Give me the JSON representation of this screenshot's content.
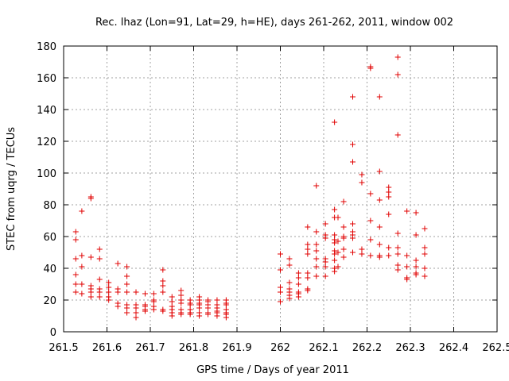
{
  "chart_data": {
    "type": "scatter",
    "title": "Rec. lhaz (Lon=91, Lat=29, h=HE), days 261-262, 2011, window 002",
    "xlabel": "GPS time / Days of year 2011",
    "ylabel": "STEC from uqrg / TECUs",
    "xlim": [
      261.5,
      262.5
    ],
    "ylim": [
      0,
      180
    ],
    "xticks": [
      "261.5",
      "261.6",
      "261.7",
      "261.8",
      "261.9",
      "262",
      "262.1",
      "262.2",
      "262.3",
      "262.4",
      "262.5"
    ],
    "yticks": [
      "0",
      "20",
      "40",
      "60",
      "80",
      "100",
      "120",
      "140",
      "160",
      "180"
    ],
    "grid": true,
    "marker": "plus",
    "color": "#e00000",
    "points": [
      [
        261.528,
        63
      ],
      [
        261.528,
        58
      ],
      [
        261.528,
        46
      ],
      [
        261.528,
        36
      ],
      [
        261.528,
        30
      ],
      [
        261.528,
        25
      ],
      [
        261.542,
        76
      ],
      [
        261.542,
        48
      ],
      [
        261.542,
        41
      ],
      [
        261.542,
        30
      ],
      [
        261.542,
        24
      ],
      [
        261.563,
        85
      ],
      [
        261.563,
        84
      ],
      [
        261.563,
        47
      ],
      [
        261.563,
        29
      ],
      [
        261.563,
        27
      ],
      [
        261.563,
        25
      ],
      [
        261.563,
        22
      ],
      [
        261.583,
        52
      ],
      [
        261.583,
        46
      ],
      [
        261.583,
        33
      ],
      [
        261.583,
        27
      ],
      [
        261.583,
        25
      ],
      [
        261.583,
        22
      ],
      [
        261.604,
        31
      ],
      [
        261.604,
        28
      ],
      [
        261.604,
        25
      ],
      [
        261.604,
        22
      ],
      [
        261.604,
        20
      ],
      [
        261.625,
        43
      ],
      [
        261.625,
        27
      ],
      [
        261.625,
        25
      ],
      [
        261.625,
        18
      ],
      [
        261.625,
        16
      ],
      [
        261.646,
        41
      ],
      [
        261.646,
        35
      ],
      [
        261.646,
        30
      ],
      [
        261.646,
        25
      ],
      [
        261.646,
        17
      ],
      [
        261.646,
        15
      ],
      [
        261.646,
        12
      ],
      [
        261.667,
        25
      ],
      [
        261.667,
        17
      ],
      [
        261.667,
        15
      ],
      [
        261.667,
        12
      ],
      [
        261.667,
        9
      ],
      [
        261.688,
        24
      ],
      [
        261.688,
        17
      ],
      [
        261.688,
        16
      ],
      [
        261.688,
        14
      ],
      [
        261.688,
        13
      ],
      [
        261.708,
        24
      ],
      [
        261.708,
        20
      ],
      [
        261.708,
        19
      ],
      [
        261.708,
        16
      ],
      [
        261.708,
        14
      ],
      [
        261.729,
        39
      ],
      [
        261.729,
        32
      ],
      [
        261.729,
        29
      ],
      [
        261.729,
        25
      ],
      [
        261.729,
        14
      ],
      [
        261.729,
        13
      ],
      [
        261.75,
        22
      ],
      [
        261.75,
        19
      ],
      [
        261.75,
        16
      ],
      [
        261.75,
        14
      ],
      [
        261.75,
        12
      ],
      [
        261.75,
        10
      ],
      [
        261.771,
        26
      ],
      [
        261.771,
        23
      ],
      [
        261.771,
        20
      ],
      [
        261.771,
        18
      ],
      [
        261.771,
        14
      ],
      [
        261.771,
        12
      ],
      [
        261.771,
        11
      ],
      [
        261.792,
        20
      ],
      [
        261.792,
        18
      ],
      [
        261.792,
        17
      ],
      [
        261.792,
        14
      ],
      [
        261.792,
        12
      ],
      [
        261.792,
        11
      ],
      [
        261.813,
        22
      ],
      [
        261.813,
        20
      ],
      [
        261.813,
        18
      ],
      [
        261.813,
        17
      ],
      [
        261.813,
        15
      ],
      [
        261.813,
        12
      ],
      [
        261.813,
        10
      ],
      [
        261.833,
        20
      ],
      [
        261.833,
        19
      ],
      [
        261.833,
        17
      ],
      [
        261.833,
        15
      ],
      [
        261.833,
        12
      ],
      [
        261.833,
        11
      ],
      [
        261.854,
        20
      ],
      [
        261.854,
        17
      ],
      [
        261.854,
        15
      ],
      [
        261.854,
        13
      ],
      [
        261.854,
        12
      ],
      [
        261.854,
        10
      ],
      [
        261.875,
        20
      ],
      [
        261.875,
        18
      ],
      [
        261.875,
        17
      ],
      [
        261.875,
        14
      ],
      [
        261.875,
        12
      ],
      [
        261.875,
        11
      ],
      [
        261.875,
        9
      ],
      [
        262.0,
        49
      ],
      [
        262.0,
        39
      ],
      [
        262.0,
        28
      ],
      [
        262.0,
        25
      ],
      [
        262.0,
        19
      ],
      [
        262.021,
        46
      ],
      [
        262.021,
        42
      ],
      [
        262.021,
        31
      ],
      [
        262.021,
        27
      ],
      [
        262.021,
        25
      ],
      [
        262.021,
        23
      ],
      [
        262.021,
        21
      ],
      [
        262.042,
        37
      ],
      [
        262.042,
        34
      ],
      [
        262.042,
        30
      ],
      [
        262.042,
        25
      ],
      [
        262.042,
        24
      ],
      [
        262.042,
        22
      ],
      [
        262.063,
        66
      ],
      [
        262.063,
        55
      ],
      [
        262.063,
        52
      ],
      [
        262.063,
        49
      ],
      [
        262.063,
        37
      ],
      [
        262.063,
        34
      ],
      [
        262.063,
        27
      ],
      [
        262.063,
        26
      ],
      [
        262.083,
        92
      ],
      [
        262.083,
        63
      ],
      [
        262.083,
        55
      ],
      [
        262.083,
        51
      ],
      [
        262.083,
        46
      ],
      [
        262.083,
        41
      ],
      [
        262.083,
        35
      ],
      [
        262.104,
        68
      ],
      [
        262.104,
        61
      ],
      [
        262.104,
        59
      ],
      [
        262.104,
        46
      ],
      [
        262.104,
        44
      ],
      [
        262.104,
        41
      ],
      [
        262.104,
        35
      ],
      [
        262.125,
        132
      ],
      [
        262.125,
        77
      ],
      [
        262.125,
        72
      ],
      [
        262.125,
        61
      ],
      [
        262.125,
        58
      ],
      [
        262.125,
        56
      ],
      [
        262.125,
        51
      ],
      [
        262.125,
        49
      ],
      [
        262.125,
        45
      ],
      [
        262.125,
        40
      ],
      [
        262.125,
        38
      ],
      [
        262.133,
        72
      ],
      [
        262.133,
        57
      ],
      [
        262.133,
        50
      ],
      [
        262.133,
        41
      ],
      [
        262.146,
        82
      ],
      [
        262.146,
        66
      ],
      [
        262.146,
        60
      ],
      [
        262.146,
        59
      ],
      [
        262.146,
        52
      ],
      [
        262.146,
        47
      ],
      [
        262.167,
        148
      ],
      [
        262.167,
        118
      ],
      [
        262.167,
        107
      ],
      [
        262.167,
        68
      ],
      [
        262.167,
        63
      ],
      [
        262.167,
        61
      ],
      [
        262.167,
        59
      ],
      [
        262.167,
        50
      ],
      [
        262.188,
        99
      ],
      [
        262.188,
        94
      ],
      [
        262.188,
        52
      ],
      [
        262.188,
        49
      ],
      [
        262.208,
        167
      ],
      [
        262.208,
        166
      ],
      [
        262.208,
        87
      ],
      [
        262.208,
        70
      ],
      [
        262.208,
        58
      ],
      [
        262.208,
        48
      ],
      [
        262.229,
        148
      ],
      [
        262.229,
        101
      ],
      [
        262.229,
        83
      ],
      [
        262.229,
        66
      ],
      [
        262.229,
        55
      ],
      [
        262.229,
        48
      ],
      [
        262.229,
        47
      ],
      [
        262.25,
        91
      ],
      [
        262.25,
        88
      ],
      [
        262.25,
        85
      ],
      [
        262.25,
        74
      ],
      [
        262.25,
        53
      ],
      [
        262.25,
        48
      ],
      [
        262.271,
        173
      ],
      [
        262.271,
        162
      ],
      [
        262.271,
        124
      ],
      [
        262.271,
        62
      ],
      [
        262.271,
        53
      ],
      [
        262.271,
        49
      ],
      [
        262.271,
        42
      ],
      [
        262.271,
        39
      ],
      [
        262.292,
        76
      ],
      [
        262.292,
        48
      ],
      [
        262.292,
        41
      ],
      [
        262.292,
        34
      ],
      [
        262.292,
        33
      ],
      [
        262.313,
        75
      ],
      [
        262.313,
        61
      ],
      [
        262.313,
        45
      ],
      [
        262.313,
        41
      ],
      [
        262.313,
        37
      ],
      [
        262.313,
        36
      ],
      [
        262.333,
        65
      ],
      [
        262.333,
        53
      ],
      [
        262.333,
        49
      ],
      [
        262.333,
        40
      ],
      [
        262.333,
        35
      ]
    ]
  }
}
